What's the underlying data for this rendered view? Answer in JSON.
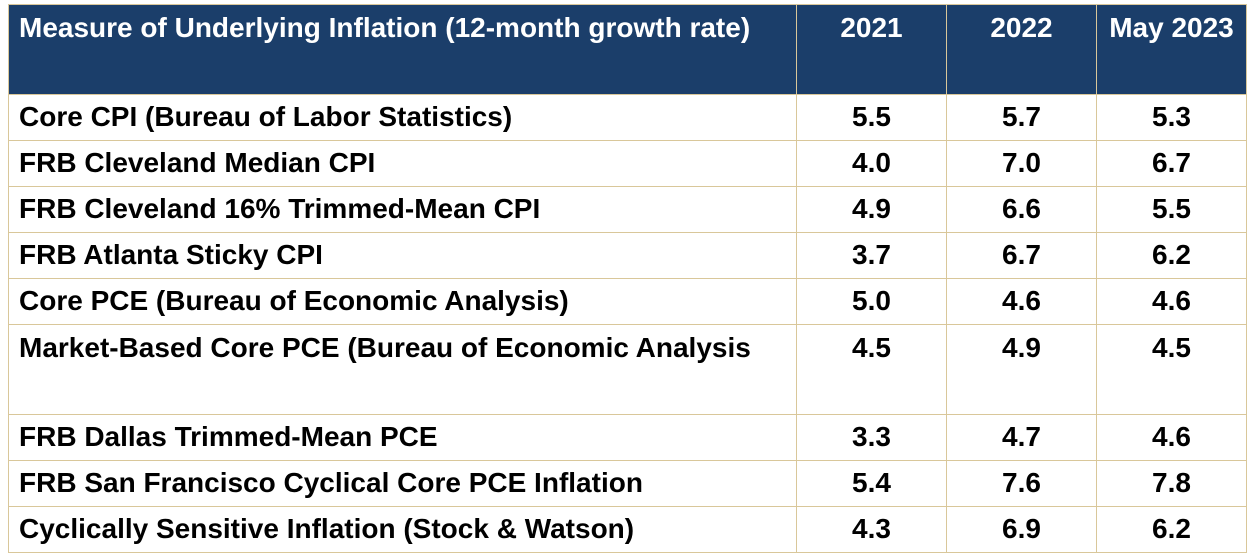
{
  "table": {
    "headers": {
      "measure": "Measure of Underlying Inflation (12-month growth rate)",
      "year_2021": "2021",
      "year_2022": "2022",
      "may_2023": "May 2023"
    },
    "rows": [
      {
        "measure": "Core CPI (Bureau of Labor Statistics)",
        "v2021": "5.5",
        "v2022": "5.7",
        "vMay2023": "5.3"
      },
      {
        "measure": "FRB Cleveland Median CPI",
        "v2021": "4.0",
        "v2022": "7.0",
        "vMay2023": "6.7"
      },
      {
        "measure": "FRB Cleveland 16% Trimmed-Mean CPI",
        "v2021": "4.9",
        "v2022": "6.6",
        "vMay2023": "5.5"
      },
      {
        "measure": "FRB Atlanta Sticky CPI",
        "v2021": "3.7",
        "v2022": "6.7",
        "vMay2023": "6.2"
      },
      {
        "measure": "Core PCE (Bureau of Economic Analysis)",
        "v2021": "5.0",
        "v2022": "4.6",
        "vMay2023": "4.6"
      },
      {
        "measure": "Market-Based Core PCE (Bureau of Economic Analysis",
        "v2021": "4.5",
        "v2022": "4.9",
        "vMay2023": "4.5"
      },
      {
        "measure": "FRB Dallas Trimmed-Mean PCE",
        "v2021": "3.3",
        "v2022": "4.7",
        "vMay2023": "4.6"
      },
      {
        "measure": "FRB San Francisco Cyclical Core PCE Inflation",
        "v2021": "5.4",
        "v2022": "7.6",
        "vMay2023": "7.8"
      },
      {
        "measure": "Cyclically Sensitive Inflation (Stock & Watson)",
        "v2021": "4.3",
        "v2022": "6.9",
        "vMay2023": "6.2"
      }
    ]
  },
  "colors": {
    "header_background": "#1b3e6a",
    "header_text": "#ffffff",
    "border": "#d9c79a",
    "body_text": "#000000"
  }
}
